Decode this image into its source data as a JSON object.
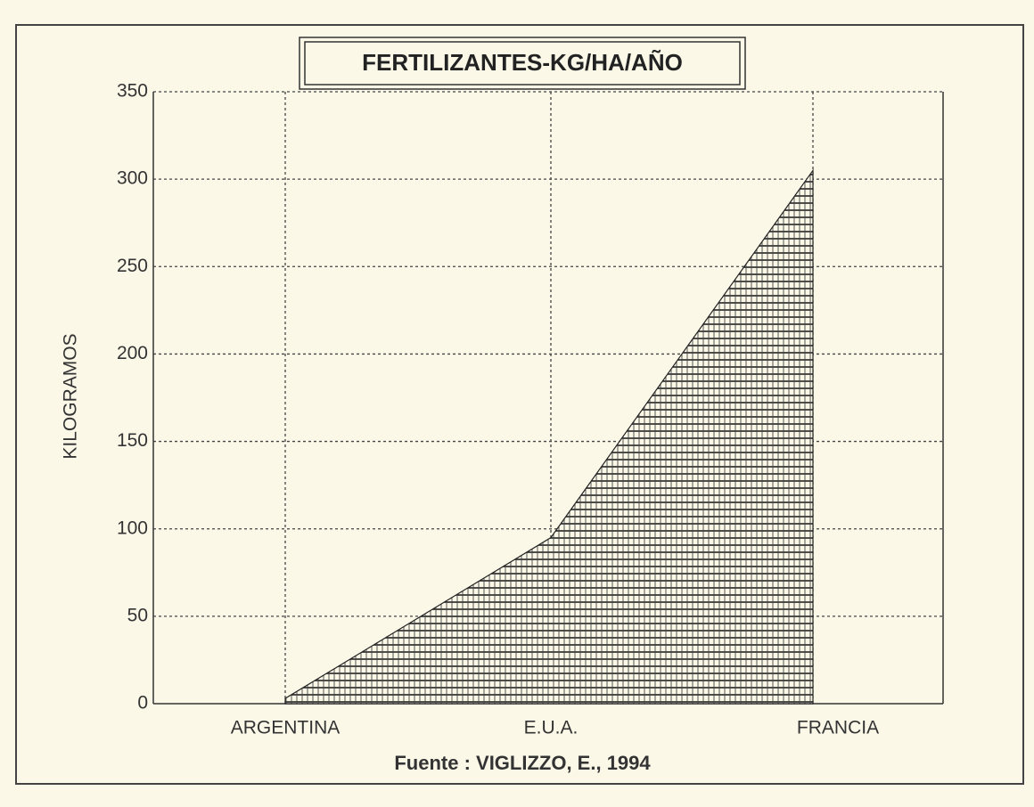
{
  "chart_data": {
    "type": "area",
    "title": "FERTILIZANTES-KG/HA/AÑO",
    "ylabel": "KILOGRAMOS",
    "source": "Fuente : VIGLIZZO, E., 1994",
    "categories": [
      "ARGENTINA",
      "E.U.A.",
      "FRANCIA"
    ],
    "values": [
      3,
      95,
      305
    ],
    "color": "#222222",
    "ylim": [
      0,
      350
    ],
    "yticks": [
      0,
      50,
      100,
      150,
      200,
      250,
      300,
      350
    ],
    "grid": true
  }
}
